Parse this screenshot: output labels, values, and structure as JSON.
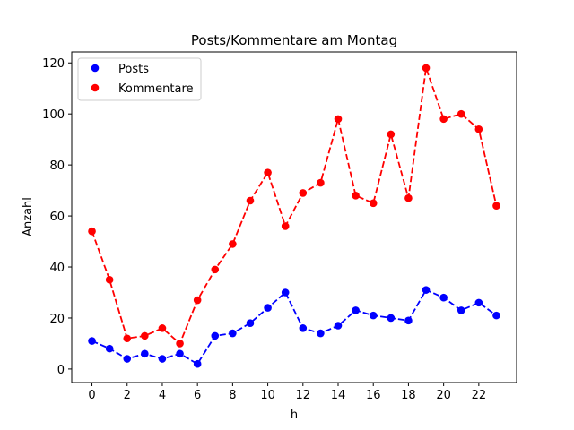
{
  "chart_data": {
    "type": "line",
    "title": "Posts/Kommentare am Montag",
    "xlabel": "h",
    "ylabel": "Anzahl",
    "xlim": [
      -1.15,
      24.15
    ],
    "ylim": [
      -5.3,
      124.3
    ],
    "xticks": [
      0,
      2,
      4,
      6,
      8,
      10,
      12,
      14,
      16,
      18,
      20,
      22
    ],
    "yticks": [
      0,
      20,
      40,
      60,
      80,
      100,
      120
    ],
    "grid": false,
    "legend_position": "top-left",
    "x": [
      0,
      1,
      2,
      3,
      4,
      5,
      6,
      7,
      8,
      9,
      10,
      11,
      12,
      13,
      14,
      15,
      16,
      17,
      18,
      19,
      20,
      21,
      22,
      23
    ],
    "series": [
      {
        "name": "Posts",
        "color": "#0000ff",
        "line_style": "dashed",
        "marker": "circle",
        "values": [
          11,
          8,
          4,
          6,
          4,
          6,
          2,
          13,
          14,
          18,
          24,
          30,
          16,
          14,
          17,
          23,
          21,
          20,
          19,
          31,
          28,
          23,
          26,
          21
        ]
      },
      {
        "name": "Kommentare",
        "color": "#ff0000",
        "line_style": "dashed",
        "marker": "circle",
        "values": [
          54,
          35,
          12,
          13,
          16,
          10,
          27,
          39,
          49,
          66,
          77,
          56,
          69,
          73,
          98,
          68,
          65,
          92,
          67,
          118,
          98,
          100,
          94,
          64
        ]
      }
    ]
  }
}
